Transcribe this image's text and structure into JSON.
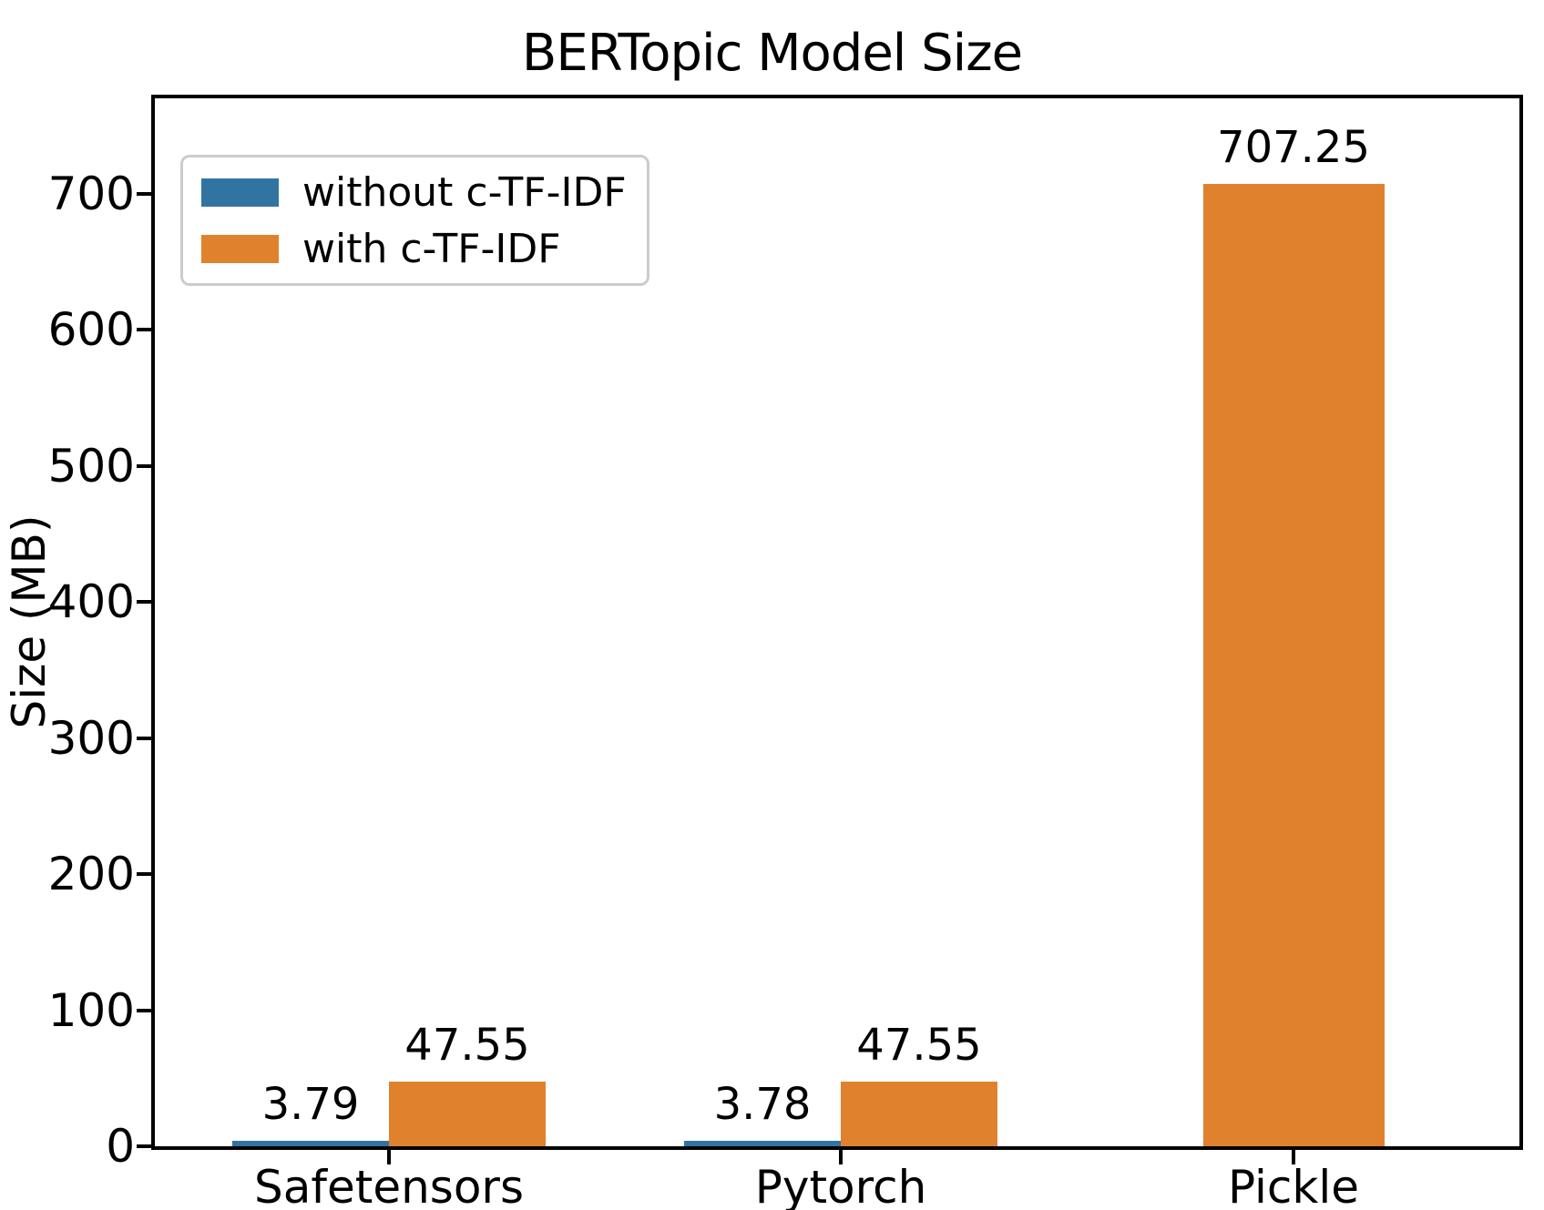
{
  "chart_data": {
    "type": "bar",
    "title": "BERTopic Model Size",
    "ylabel": "Size (MB)",
    "xlabel": "",
    "categories": [
      "Safetensors",
      "Pytorch",
      "Pickle"
    ],
    "series": [
      {
        "name": "without c-TF-IDF",
        "color": "#3274a1",
        "values": [
          3.79,
          3.78,
          null
        ],
        "labels": [
          "3.79",
          "3.78",
          null
        ]
      },
      {
        "name": "with c-TF-IDF",
        "color": "#e0822d",
        "values": [
          47.55,
          47.55,
          707.25
        ],
        "labels": [
          "47.55",
          "47.55",
          "707.25"
        ]
      }
    ],
    "yticks": [
      0,
      100,
      200,
      300,
      400,
      500,
      600,
      700
    ],
    "ylim": [
      0,
      770
    ],
    "grid": false,
    "legend_position": "upper left",
    "axis_color": "#000000",
    "background_color": "#ffffff"
  }
}
